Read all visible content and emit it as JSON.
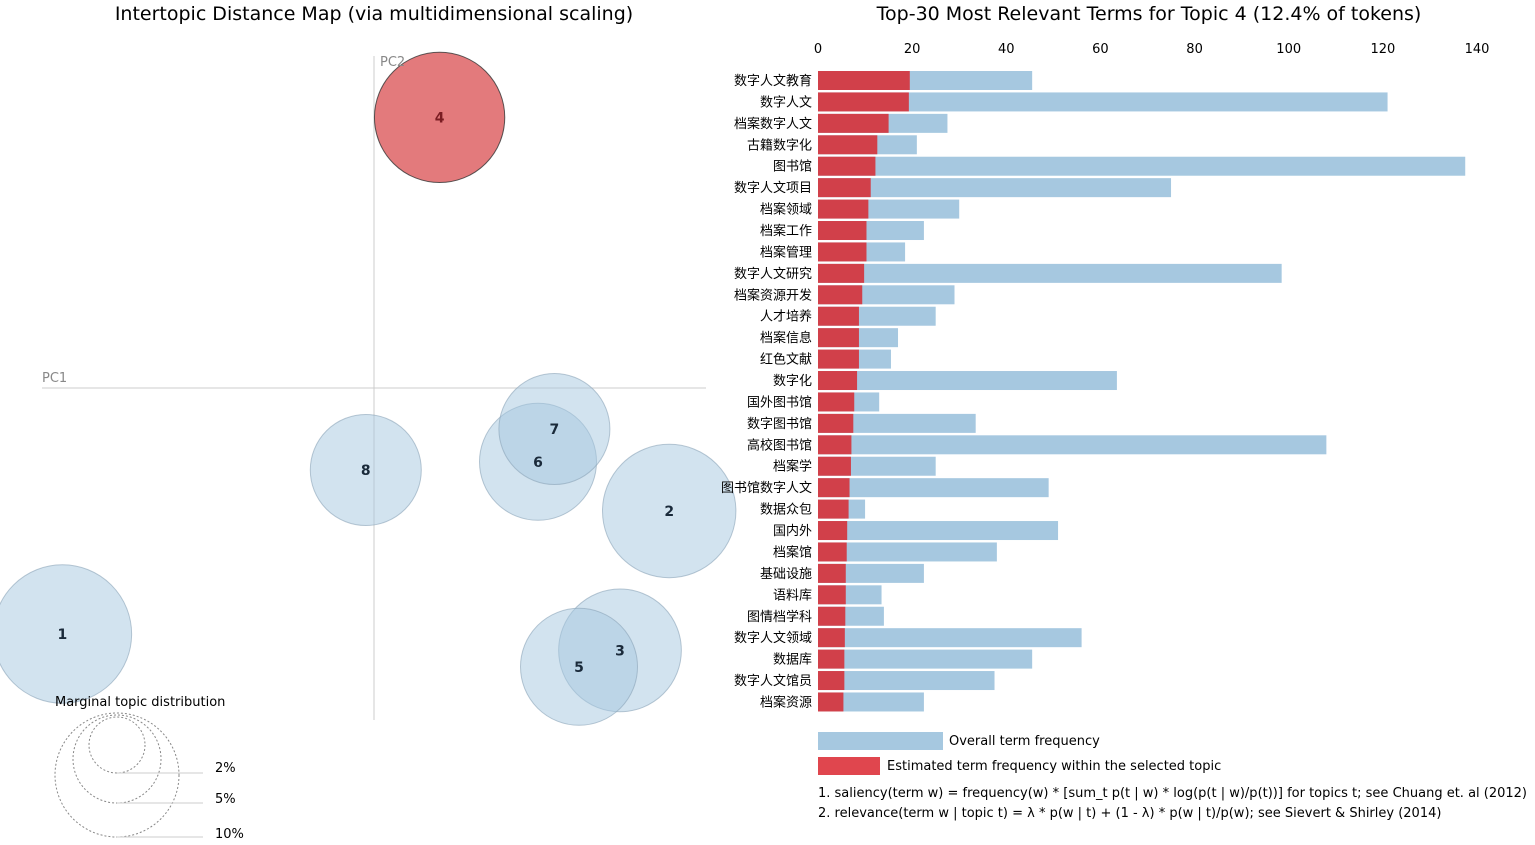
{
  "left_title": "Intertopic Distance Map (via multidimensional scaling)",
  "right_title": "Top-30 Most Relevant Terms for Topic 4 (12.4% of tokens)",
  "pc1_label": "PC1",
  "pc2_label": "PC2",
  "marginal": {
    "title": "Marginal topic distribution",
    "labels": [
      "2%",
      "5%",
      "10%"
    ]
  },
  "legend": {
    "overall": "Overall term frequency",
    "estimated": "Estimated term frequency within the selected topic"
  },
  "footnotes": [
    "1. saliency(term w) = frequency(w) * [sum_t p(t | w) * log(p(t | w)/p(t))] for topics t; see Chuang et. al (2012)",
    "2. relevance(term w | topic t) = λ * p(w | t) + (1 - λ) * p(w | t)/p(w); see Sievert & Shirley (2014)"
  ],
  "colors": {
    "overall": "#a6c8e0",
    "estimated": "#d1404a",
    "topic_circle": "#a6c8e0",
    "selected_circle": "#e06b6e"
  },
  "chart_data": [
    {
      "type": "scatter",
      "title": "Intertopic Distance Map (via multidimensional scaling)",
      "xlabel": "PC1",
      "ylabel": "PC2",
      "selected": "4",
      "topics": [
        {
          "id": "1",
          "x": -0.38,
          "y": -0.3,
          "size": 14.0
        },
        {
          "id": "2",
          "x": 0.36,
          "y": -0.15,
          "size": 13.0
        },
        {
          "id": "3",
          "x": 0.3,
          "y": -0.32,
          "size": 11.0
        },
        {
          "id": "4",
          "x": 0.08,
          "y": 0.33,
          "size": 12.4
        },
        {
          "id": "5",
          "x": 0.25,
          "y": -0.34,
          "size": 10.0
        },
        {
          "id": "6",
          "x": 0.2,
          "y": -0.09,
          "size": 10.0
        },
        {
          "id": "7",
          "x": 0.22,
          "y": -0.05,
          "size": 9.0
        },
        {
          "id": "8",
          "x": -0.01,
          "y": -0.1,
          "size": 9.0
        }
      ]
    },
    {
      "type": "bar",
      "title": "Top-30 Most Relevant Terms for Topic 4 (12.4% of tokens)",
      "orientation": "horizontal",
      "xlim": [
        0,
        140
      ],
      "xticks": [
        0,
        20,
        40,
        60,
        80,
        100,
        120,
        140
      ],
      "categories": [
        "数字人文教育",
        "数字人文",
        "档案数字人文",
        "古籍数字化",
        "图书馆",
        "数字人文项目",
        "档案领域",
        "档案工作",
        "档案管理",
        "数字人文研究",
        "档案资源开发",
        "人才培养",
        "档案信息",
        "红色文献",
        "数字化",
        "国外图书馆",
        "数字图书馆",
        "高校图书馆",
        "档案学",
        "图书馆数字人文",
        "数据众包",
        "国内外",
        "档案馆",
        "基础设施",
        "语料库",
        "图情档学科",
        "数字人文领域",
        "数据库",
        "数字人文馆员",
        "档案资源"
      ],
      "series": [
        {
          "name": "Overall term frequency",
          "values": [
            45.5,
            121,
            27.5,
            21,
            137.5,
            75,
            30,
            22.5,
            18.5,
            98.5,
            29,
            25,
            17,
            15.5,
            63.5,
            13,
            33.5,
            108,
            25,
            49,
            10,
            51,
            38,
            22.5,
            13.5,
            14,
            56,
            45.5,
            37.5,
            22.5
          ]
        },
        {
          "name": "Estimated term frequency within the selected topic",
          "values": [
            19.5,
            19.3,
            15,
            12.6,
            12.2,
            11.2,
            10.7,
            10.3,
            10.3,
            9.8,
            9.4,
            8.7,
            8.7,
            8.7,
            8.3,
            7.7,
            7.5,
            7.1,
            7,
            6.7,
            6.5,
            6.2,
            6.1,
            5.9,
            5.9,
            5.8,
            5.7,
            5.6,
            5.6,
            5.4
          ]
        }
      ]
    }
  ]
}
